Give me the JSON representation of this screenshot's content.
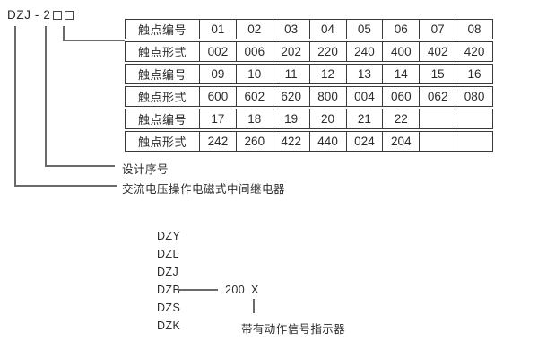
{
  "model": {
    "text": "DZJ - 2"
  },
  "contact_table": {
    "rows": [
      {
        "label": "触点编号",
        "cells": [
          "01",
          "02",
          "03",
          "04",
          "05",
          "06",
          "07",
          "08"
        ]
      },
      {
        "label": "触点形式",
        "cells": [
          "002",
          "006",
          "202",
          "220",
          "240",
          "400",
          "402",
          "420"
        ]
      },
      {
        "label": "触点编号",
        "cells": [
          "09",
          "10",
          "11",
          "12",
          "13",
          "14",
          "15",
          "16"
        ]
      },
      {
        "label": "触点形式",
        "cells": [
          "600",
          "602",
          "620",
          "800",
          "004",
          "060",
          "062",
          "080"
        ]
      },
      {
        "label": "触点编号",
        "cells": [
          "17",
          "18",
          "19",
          "20",
          "21",
          "22",
          "",
          ""
        ]
      },
      {
        "label": "触点形式",
        "cells": [
          "242",
          "260",
          "422",
          "440",
          "024",
          "204",
          "",
          ""
        ]
      }
    ]
  },
  "callouts": {
    "design_serial": "设计序号",
    "relay_type": "交流电压操作电磁式中间继电器"
  },
  "series": {
    "items": [
      "DZY",
      "DZL",
      "DZJ",
      "DZB",
      "DZS",
      "DZK"
    ],
    "dzb_number": "200",
    "dzb_variant": "X",
    "indicator_label": "带有动作信号指示器"
  },
  "colors": {
    "text": "#2b2b2b",
    "line": "#6a6a6a",
    "border": "#3a3a3a",
    "background": "#ffffff"
  }
}
